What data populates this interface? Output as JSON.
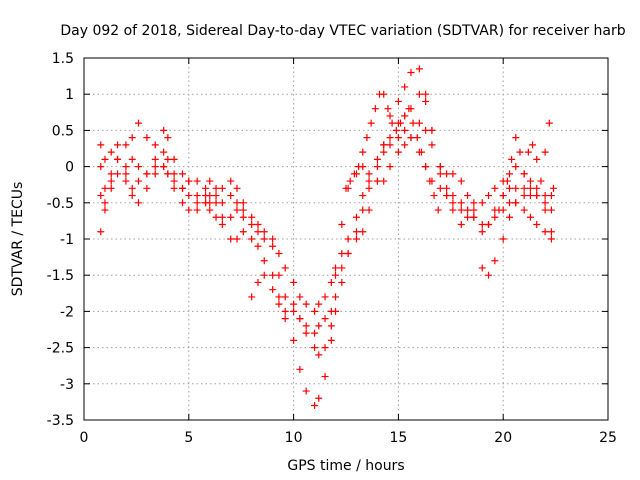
{
  "chart_data": {
    "type": "scatter",
    "title": "Day 092 of 2018, Sidereal Day-to-day VTEC variation (SDTVAR) for receiver harb",
    "xlabel": "GPS time / hours",
    "ylabel": "SDTVAR / TECUs",
    "xlim": [
      0,
      25
    ],
    "ylim": [
      -3.5,
      1.5
    ],
    "xticks": [
      0,
      5,
      10,
      15,
      20,
      25
    ],
    "xtick_labels": [
      "0",
      "5",
      "10",
      "15",
      "20",
      "25"
    ],
    "yticks": [
      -3.5,
      -3,
      -2.5,
      -2,
      -1.5,
      -1,
      -0.5,
      0,
      0.5,
      1,
      1.5
    ],
    "ytick_labels": [
      "-3.5",
      "-3",
      "-2.5",
      "-2",
      "-1.5",
      "-1",
      "-0.5",
      "0",
      "0.5",
      "1",
      "1.5"
    ],
    "grid": true,
    "marker": "plus",
    "color": "#ff0000",
    "series": [
      {
        "x": [
          0.8,
          1.0,
          1.3,
          1.6,
          2.0,
          2.3,
          2.6,
          3.0,
          3.4,
          3.8,
          4.0,
          4.3,
          4.7,
          5.0,
          5.4,
          5.8,
          6.0,
          6.3,
          6.6,
          7.0,
          7.3,
          7.6,
          8.0,
          8.3,
          8.6,
          9.0,
          9.3,
          9.6,
          10.0,
          10.3,
          10.6,
          11.0,
          11.2,
          11.5,
          11.8,
          12.0,
          12.3,
          12.6,
          13.0,
          13.3,
          13.6,
          14.0,
          14.3,
          14.6,
          15.0,
          15.3,
          15.6,
          16.0,
          16.3,
          16.6,
          17.0,
          17.3,
          17.6,
          18.0,
          18.3,
          18.6,
          19.0,
          19.3,
          19.6,
          20.0,
          20.3,
          20.6,
          21.0,
          21.3,
          21.6,
          22.0,
          22.3
        ],
        "y": [
          -0.9,
          -0.6,
          -0.1,
          0.1,
          0.0,
          0.1,
          0.0,
          -0.1,
          0.0,
          0.0,
          -0.1,
          -0.2,
          -0.3,
          -0.4,
          -0.5,
          -0.5,
          -0.4,
          -0.4,
          -0.8,
          -1.0,
          -1.0,
          -0.9,
          -1.0,
          -1.1,
          -1.3,
          -1.5,
          -1.8,
          -2.0,
          -2.4,
          -2.8,
          -3.1,
          -3.3,
          -3.2,
          -2.9,
          -2.4,
          -2.0,
          -1.6,
          -1.2,
          -0.9,
          -0.6,
          -0.3,
          0.0,
          0.2,
          0.3,
          0.4,
          0.5,
          0.4,
          0.2,
          0.0,
          -0.2,
          -0.3,
          -0.4,
          -0.4,
          -0.5,
          -0.6,
          -0.7,
          -0.9,
          -0.8,
          -0.7,
          -0.6,
          -0.5,
          -0.5,
          -0.6,
          -0.7,
          -0.8,
          -0.9,
          -1.0
        ]
      },
      {
        "x": [
          0.8,
          1.0,
          1.3,
          1.6,
          2.0,
          2.3,
          2.6,
          3.0,
          3.4,
          3.8,
          4.0,
          4.3,
          4.7,
          5.0,
          5.4,
          5.8,
          6.0,
          6.3,
          6.6,
          7.0,
          7.3,
          7.6,
          8.0,
          8.3,
          8.6,
          9.0,
          9.3,
          9.6,
          10.0,
          10.3,
          10.6,
          11.0,
          11.2,
          11.5,
          11.8,
          12.0,
          12.3,
          12.6,
          13.0,
          13.3,
          13.6,
          14.0,
          14.3,
          14.6,
          15.0,
          15.3,
          15.6,
          16.0,
          16.3,
          16.6,
          17.0,
          17.3,
          17.6,
          18.0,
          18.3,
          18.6,
          19.0,
          19.3,
          19.6,
          20.0,
          20.3,
          20.6,
          21.0,
          21.3,
          21.6,
          22.0,
          22.3
        ],
        "y": [
          0.3,
          0.1,
          0.2,
          0.3,
          0.3,
          0.4,
          0.6,
          0.4,
          0.3,
          0.5,
          0.4,
          0.1,
          -0.1,
          -0.2,
          -0.4,
          -0.5,
          -0.6,
          -0.7,
          -0.7,
          -0.4,
          -0.5,
          -0.7,
          -0.8,
          -0.8,
          -0.9,
          -1.1,
          -1.5,
          -1.8,
          -1.9,
          -2.1,
          -2.3,
          -2.5,
          -2.6,
          -2.5,
          -2.2,
          -1.8,
          -1.4,
          -1.2,
          -1.0,
          -0.9,
          -0.6,
          -0.2,
          0.3,
          0.7,
          0.9,
          1.1,
          1.3,
          1.35,
          1.0,
          0.5,
          0.0,
          -0.3,
          -0.5,
          -0.6,
          -0.6,
          -0.7,
          -0.8,
          -0.8,
          -0.6,
          -0.4,
          -0.3,
          -0.3,
          -0.3,
          -0.4,
          -0.4,
          -0.5,
          -0.6
        ]
      },
      {
        "x": [
          0.8,
          1.0,
          1.3,
          1.6,
          2.0,
          2.3,
          2.6,
          3.0,
          3.4,
          3.8,
          4.0,
          4.3,
          4.7,
          5.0,
          5.4,
          5.8,
          6.0,
          6.3,
          6.6,
          7.0,
          7.3,
          7.6,
          8.0,
          8.3,
          8.6,
          9.0,
          9.3,
          9.6,
          10.0,
          10.3,
          10.6,
          11.0,
          11.2,
          11.5,
          11.8,
          12.0,
          12.3,
          12.6,
          13.0,
          13.3,
          13.6,
          14.0,
          14.3,
          14.6,
          15.0,
          15.3,
          15.6,
          16.0,
          16.3,
          16.6,
          17.0,
          17.3,
          17.6,
          18.0,
          18.3,
          18.6,
          19.0,
          19.3,
          19.6,
          20.0,
          20.3,
          20.6,
          21.0,
          21.3,
          21.6,
          22.0,
          22.3
        ],
        "y": [
          0.0,
          -0.3,
          -0.2,
          0.1,
          -0.1,
          -0.3,
          -0.2,
          -0.1,
          0.1,
          0.2,
          0.1,
          -0.1,
          -0.3,
          -0.2,
          -0.2,
          -0.3,
          -0.5,
          -0.5,
          -0.3,
          -0.2,
          -0.3,
          -0.6,
          -0.7,
          -0.9,
          -1.0,
          -1.0,
          -1.2,
          -1.4,
          -1.6,
          -1.8,
          -1.9,
          -2.0,
          -1.9,
          -1.8,
          -1.6,
          -1.4,
          -1.2,
          -1.0,
          -0.7,
          -0.4,
          -0.2,
          0.1,
          0.3,
          0.4,
          0.6,
          0.7,
          0.8,
          1.0,
          0.9,
          0.5,
          0.0,
          -0.1,
          -0.1,
          -0.2,
          -0.4,
          -0.5,
          -0.5,
          -0.4,
          -0.3,
          -0.2,
          -0.1,
          0.0,
          -0.1,
          -0.2,
          -0.3,
          -0.4,
          -0.4
        ]
      },
      {
        "x": [
          0.8,
          1.0,
          1.3,
          1.6,
          2.0,
          2.3,
          2.6,
          3.0,
          3.4,
          3.8,
          4.0,
          4.3,
          4.7,
          5.0,
          5.4,
          5.8,
          6.0,
          6.3,
          6.6,
          7.0,
          7.3,
          7.6,
          8.0,
          8.3,
          8.6,
          9.0,
          9.3,
          9.6,
          10.0,
          10.3,
          10.6,
          11.0,
          11.2,
          11.5,
          11.8,
          12.0,
          12.3,
          12.6,
          13.0,
          13.3,
          13.6,
          14.0,
          14.3,
          14.6,
          15.0,
          15.3,
          15.6,
          16.0,
          16.3,
          16.6,
          17.0,
          17.3,
          17.6,
          18.0,
          18.3,
          18.6,
          19.0,
          19.3,
          19.6,
          20.0,
          20.3,
          20.6,
          21.0,
          21.3,
          21.6,
          22.0,
          22.3
        ],
        "y": [
          -0.4,
          -0.5,
          -0.3,
          -0.1,
          -0.2,
          -0.4,
          -0.5,
          -0.3,
          -0.1,
          0.0,
          -0.1,
          -0.3,
          -0.5,
          -0.6,
          -0.6,
          -0.4,
          -0.2,
          -0.3,
          -0.5,
          -0.7,
          -0.6,
          -0.5,
          -1.8,
          -1.6,
          -1.5,
          -1.7,
          -1.9,
          -2.1,
          -2.0,
          -2.1,
          -2.2,
          -2.3,
          -2.2,
          -2.1,
          -2.0,
          -1.5,
          -0.8,
          -0.3,
          -0.1,
          0.0,
          -0.1,
          -0.2,
          -0.2,
          0.0,
          0.2,
          0.3,
          0.4,
          0.6,
          0.5,
          0.3,
          -0.1,
          -0.4,
          -0.6,
          -0.8,
          -0.7,
          -0.6,
          -1.4,
          -1.5,
          -1.3,
          -1.0,
          -0.7,
          -0.5,
          -0.4,
          -0.3,
          -0.4,
          -0.6,
          -0.9
        ]
      },
      {
        "x": [
          12.5,
          12.7,
          12.9,
          13.1,
          13.3,
          13.5,
          13.7,
          13.9,
          14.1,
          14.3,
          14.5,
          14.7,
          14.9,
          15.1,
          15.3,
          15.5,
          15.7,
          15.9,
          16.1,
          16.3,
          16.5,
          16.7,
          16.9
        ],
        "y": [
          -0.3,
          -0.2,
          -0.1,
          0.0,
          0.2,
          0.4,
          0.6,
          0.8,
          1.0,
          1.0,
          0.8,
          0.6,
          0.5,
          0.6,
          0.7,
          0.8,
          0.6,
          0.4,
          0.2,
          0.0,
          -0.2,
          -0.4,
          -0.6
        ]
      },
      {
        "x": [
          19.8,
          20.0,
          20.2,
          20.4,
          20.6,
          20.8,
          21.0,
          21.2,
          21.4,
          21.6,
          21.8,
          22.0,
          22.2,
          22.4
        ],
        "y": [
          -0.6,
          -0.4,
          -0.2,
          0.1,
          0.4,
          0.2,
          -0.1,
          0.2,
          0.3,
          0.1,
          -0.2,
          0.2,
          0.6,
          -0.3
        ]
      }
    ]
  }
}
